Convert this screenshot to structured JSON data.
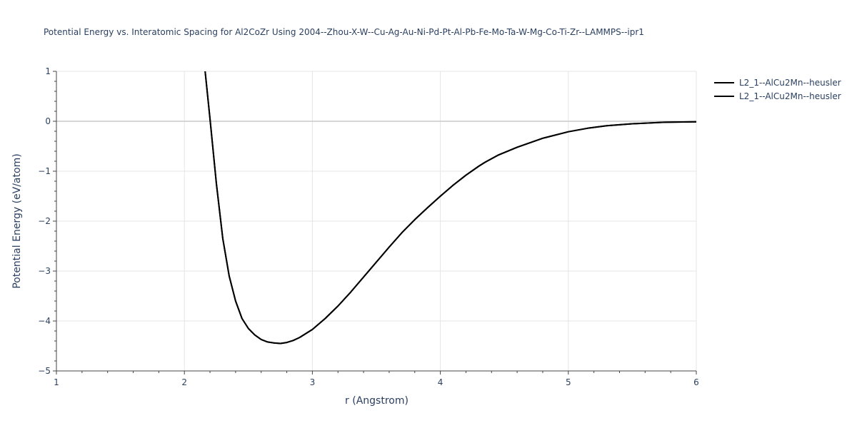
{
  "chart_data": {
    "type": "line",
    "title": "Potential Energy vs. Interatomic Spacing for Al2CoZr Using 2004--Zhou-X-W--Cu-Ag-Au-Ni-Pd-Pt-Al-Pb-Fe-Mo-Ta-W-Mg-Co-Ti-Zr--LAMMPS--ipr1",
    "xlabel": "r (Angstrom)",
    "ylabel": "Potential Energy (eV/atom)",
    "xlim": [
      1,
      6
    ],
    "ylim": [
      -5,
      1
    ],
    "xticks": [
      1,
      2,
      3,
      4,
      5,
      6
    ],
    "yticks": [
      -5,
      -4,
      -3,
      -2,
      -1,
      0,
      1
    ],
    "grid": true,
    "legend_position": "top-right",
    "line_color": "#000000",
    "series": [
      {
        "name": "L2_1--AlCu2Mn--heusler",
        "x": [
          2.16,
          2.2,
          2.25,
          2.3,
          2.35,
          2.4,
          2.45,
          2.5,
          2.55,
          2.6,
          2.65,
          2.7,
          2.75,
          2.8,
          2.85,
          2.9,
          2.95,
          3.0,
          3.1,
          3.2,
          3.3,
          3.4,
          3.5,
          3.6,
          3.7,
          3.8,
          3.9,
          4.0,
          4.1,
          4.2,
          4.3,
          4.35,
          4.45,
          4.6,
          4.8,
          5.0,
          5.15,
          5.3,
          5.5,
          5.75,
          6.0
        ],
        "y": [
          1.05,
          0.05,
          -1.25,
          -2.35,
          -3.1,
          -3.6,
          -3.95,
          -4.15,
          -4.28,
          -4.37,
          -4.42,
          -4.44,
          -4.45,
          -4.43,
          -4.39,
          -4.33,
          -4.25,
          -4.17,
          -3.95,
          -3.7,
          -3.42,
          -3.12,
          -2.82,
          -2.52,
          -2.23,
          -1.97,
          -1.73,
          -1.5,
          -1.28,
          -1.08,
          -0.9,
          -0.82,
          -0.68,
          -0.52,
          -0.34,
          -0.21,
          -0.14,
          -0.09,
          -0.05,
          -0.02,
          -0.01
        ]
      },
      {
        "name": "L2_1--AlCu2Mn--heusler",
        "x": [
          2.16,
          2.2,
          2.25,
          2.3,
          2.35,
          2.4,
          2.45,
          2.5,
          2.55,
          2.6,
          2.65,
          2.7,
          2.75,
          2.8,
          2.85,
          2.9,
          2.95,
          3.0,
          3.1,
          3.2,
          3.3,
          3.4,
          3.5,
          3.6,
          3.7,
          3.8,
          3.9,
          4.0,
          4.1,
          4.2,
          4.3,
          4.35,
          4.45,
          4.6,
          4.8,
          5.0,
          5.15,
          5.3,
          5.5,
          5.75,
          6.0
        ],
        "y": [
          1.05,
          0.05,
          -1.25,
          -2.35,
          -3.1,
          -3.6,
          -3.95,
          -4.15,
          -4.28,
          -4.37,
          -4.42,
          -4.44,
          -4.45,
          -4.43,
          -4.39,
          -4.33,
          -4.25,
          -4.17,
          -3.95,
          -3.7,
          -3.42,
          -3.12,
          -2.82,
          -2.52,
          -2.23,
          -1.97,
          -1.73,
          -1.5,
          -1.28,
          -1.08,
          -0.9,
          -0.82,
          -0.68,
          -0.52,
          -0.34,
          -0.21,
          -0.14,
          -0.09,
          -0.05,
          -0.02,
          -0.01
        ]
      }
    ]
  }
}
